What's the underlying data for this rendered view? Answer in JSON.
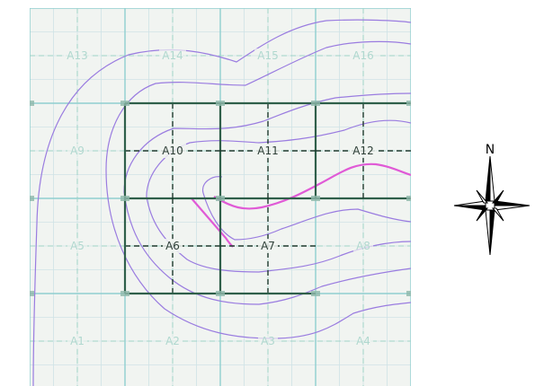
{
  "map": {
    "cells": [
      {
        "label": "A1",
        "col": 0,
        "row": 3,
        "highlight": false
      },
      {
        "label": "A2",
        "col": 1,
        "row": 3,
        "highlight": false
      },
      {
        "label": "A3",
        "col": 2,
        "row": 3,
        "highlight": false
      },
      {
        "label": "A4",
        "col": 3,
        "row": 3,
        "highlight": false
      },
      {
        "label": "A5",
        "col": 0,
        "row": 2,
        "highlight": false
      },
      {
        "label": "A6",
        "col": 1,
        "row": 2,
        "highlight": true
      },
      {
        "label": "A7",
        "col": 2,
        "row": 2,
        "highlight": true
      },
      {
        "label": "A8",
        "col": 3,
        "row": 2,
        "highlight": false
      },
      {
        "label": "A9",
        "col": 0,
        "row": 1,
        "highlight": false
      },
      {
        "label": "A10",
        "col": 1,
        "row": 1,
        "highlight": true
      },
      {
        "label": "A11",
        "col": 2,
        "row": 1,
        "highlight": true
      },
      {
        "label": "A12",
        "col": 3,
        "row": 1,
        "highlight": true
      },
      {
        "label": "A13",
        "col": 0,
        "row": 0,
        "highlight": false
      },
      {
        "label": "A14",
        "col": 1,
        "row": 0,
        "highlight": false
      },
      {
        "label": "A15",
        "col": 2,
        "row": 0,
        "highlight": false
      },
      {
        "label": "A16",
        "col": 3,
        "row": 0,
        "highlight": false
      }
    ],
    "colors": {
      "background": "#f1f4f1",
      "minor_grid": "#cfe3e6",
      "major_grid": "#8fcfcf",
      "cell_dash": "#9ed3c8",
      "highlight_border": "#2f5f4a",
      "highlight_dash": "#1e3a2e",
      "contour": "#9a7ce0",
      "stream": "#e05ad6",
      "label_dim": "#b0d8cf",
      "label_active": "#2e3f37",
      "marker": "#8fb8aa"
    }
  },
  "compass": {
    "north_label": "N",
    "icon": "compass-rose-icon",
    "color": "#000000"
  }
}
